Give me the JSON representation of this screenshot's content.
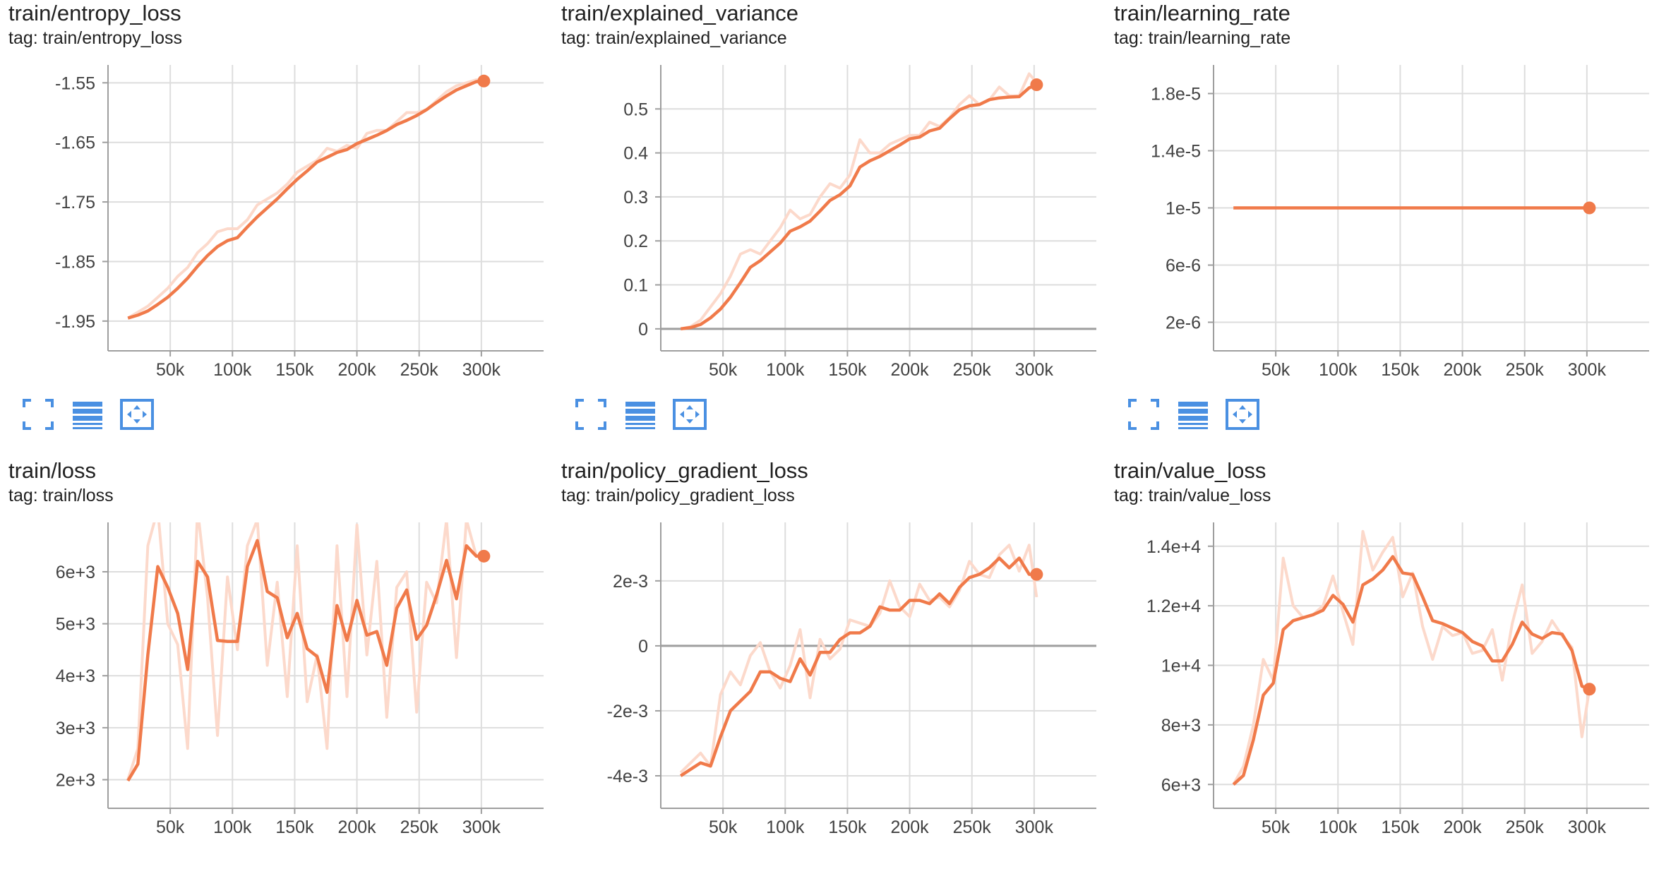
{
  "colors": {
    "accent": "#f07a4a",
    "accent_light": "#fcd9cb",
    "icon": "#4a90e2",
    "grid": "#dddddd",
    "axis": "#9e9e9e"
  },
  "icons": {
    "fullscreen": "fullscreen-icon",
    "log_scale": "log-scale-icon",
    "fit_domain": "fit-domain-icon"
  },
  "charts": [
    {
      "title": "train/entropy_loss",
      "tag": "tag: train/entropy_loss"
    },
    {
      "title": "train/explained_variance",
      "tag": "tag: train/explained_variance"
    },
    {
      "title": "train/learning_rate",
      "tag": "tag: train/learning_rate"
    },
    {
      "title": "train/loss",
      "tag": "tag: train/loss"
    },
    {
      "title": "train/policy_gradient_loss",
      "tag": "tag: train/policy_gradient_loss"
    },
    {
      "title": "train/value_loss",
      "tag": "tag: train/value_loss"
    }
  ],
  "chart_data": [
    {
      "type": "line",
      "title": "train/entropy_loss",
      "xlim": [
        0,
        350000
      ],
      "ylim": [
        -2.0,
        -1.52
      ],
      "xticks": [
        50000,
        100000,
        150000,
        200000,
        250000,
        300000
      ],
      "xtick_labels": [
        "50k",
        "100k",
        "150k",
        "200k",
        "250k",
        "300k"
      ],
      "yticks": [
        -1.95,
        -1.85,
        -1.75,
        -1.65,
        -1.55
      ],
      "ytick_labels": [
        "-1.95",
        "-1.85",
        "-1.75",
        "-1.65",
        "-1.55"
      ],
      "zero_line": false,
      "x": [
        16000,
        24000,
        32000,
        40000,
        48000,
        56000,
        64000,
        72000,
        80000,
        88000,
        96000,
        104000,
        112000,
        120000,
        128000,
        136000,
        144000,
        152000,
        160000,
        168000,
        176000,
        184000,
        192000,
        200000,
        208000,
        216000,
        224000,
        232000,
        240000,
        248000,
        256000,
        264000,
        272000,
        280000,
        288000,
        296000,
        302000
      ],
      "raw": [
        -1.945,
        -1.935,
        -1.925,
        -1.91,
        -1.895,
        -1.875,
        -1.86,
        -1.835,
        -1.82,
        -1.8,
        -1.795,
        -1.795,
        -1.78,
        -1.755,
        -1.745,
        -1.735,
        -1.72,
        -1.7,
        -1.69,
        -1.68,
        -1.66,
        -1.665,
        -1.655,
        -1.66,
        -1.635,
        -1.63,
        -1.63,
        -1.615,
        -1.6,
        -1.6,
        -1.595,
        -1.58,
        -1.565,
        -1.555,
        -1.55,
        -1.545,
        -1.545
      ],
      "smoothed": [
        -1.945,
        -1.94,
        -1.933,
        -1.922,
        -1.91,
        -1.895,
        -1.878,
        -1.858,
        -1.84,
        -1.825,
        -1.815,
        -1.81,
        -1.792,
        -1.775,
        -1.76,
        -1.745,
        -1.728,
        -1.712,
        -1.698,
        -1.683,
        -1.675,
        -1.667,
        -1.662,
        -1.652,
        -1.645,
        -1.638,
        -1.63,
        -1.62,
        -1.613,
        -1.605,
        -1.595,
        -1.583,
        -1.572,
        -1.562,
        -1.555,
        -1.548,
        -1.547
      ]
    },
    {
      "type": "line",
      "title": "train/explained_variance",
      "xlim": [
        0,
        350000
      ],
      "ylim": [
        -0.05,
        0.6
      ],
      "xticks": [
        50000,
        100000,
        150000,
        200000,
        250000,
        300000
      ],
      "xtick_labels": [
        "50k",
        "100k",
        "150k",
        "200k",
        "250k",
        "300k"
      ],
      "yticks": [
        0,
        0.1,
        0.2,
        0.3,
        0.4,
        0.5
      ],
      "ytick_labels": [
        "0",
        "0.1",
        "0.2",
        "0.3",
        "0.4",
        "0.5"
      ],
      "zero_line": true,
      "x": [
        16000,
        24000,
        32000,
        40000,
        48000,
        56000,
        64000,
        72000,
        80000,
        88000,
        96000,
        104000,
        112000,
        120000,
        128000,
        136000,
        144000,
        152000,
        160000,
        168000,
        176000,
        184000,
        192000,
        200000,
        208000,
        216000,
        224000,
        232000,
        240000,
        248000,
        256000,
        264000,
        272000,
        280000,
        288000,
        296000,
        302000
      ],
      "raw": [
        0.0,
        0.005,
        0.02,
        0.05,
        0.08,
        0.12,
        0.17,
        0.18,
        0.17,
        0.2,
        0.23,
        0.27,
        0.25,
        0.26,
        0.3,
        0.33,
        0.32,
        0.35,
        0.43,
        0.4,
        0.4,
        0.42,
        0.43,
        0.44,
        0.44,
        0.47,
        0.46,
        0.48,
        0.51,
        0.53,
        0.51,
        0.52,
        0.55,
        0.53,
        0.53,
        0.58,
        0.56
      ],
      "smoothed": [
        0.0,
        0.003,
        0.01,
        0.025,
        0.045,
        0.072,
        0.105,
        0.14,
        0.155,
        0.175,
        0.195,
        0.222,
        0.232,
        0.245,
        0.268,
        0.292,
        0.305,
        0.325,
        0.368,
        0.382,
        0.392,
        0.405,
        0.418,
        0.432,
        0.436,
        0.45,
        0.456,
        0.478,
        0.498,
        0.507,
        0.51,
        0.521,
        0.525,
        0.527,
        0.528,
        0.548,
        0.555
      ]
    },
    {
      "type": "line",
      "title": "train/learning_rate",
      "xlim": [
        0,
        350000
      ],
      "ylim": [
        0,
        2e-05
      ],
      "xticks": [
        50000,
        100000,
        150000,
        200000,
        250000,
        300000
      ],
      "xtick_labels": [
        "50k",
        "100k",
        "150k",
        "200k",
        "250k",
        "300k"
      ],
      "yticks": [
        2e-06,
        6e-06,
        1e-05,
        1.4e-05,
        1.8e-05
      ],
      "ytick_labels": [
        "2e-6",
        "6e-6",
        "1e-5",
        "1.4e-5",
        "1.8e-5"
      ],
      "zero_line": false,
      "x": [
        16000,
        302000
      ],
      "raw": [
        1e-05,
        1e-05
      ],
      "smoothed": [
        1e-05,
        1e-05
      ]
    },
    {
      "type": "line",
      "title": "train/loss",
      "xlim": [
        0,
        350000
      ],
      "ylim": [
        1450,
        6950
      ],
      "xticks": [
        50000,
        100000,
        150000,
        200000,
        250000,
        300000
      ],
      "xtick_labels": [
        "50k",
        "100k",
        "150k",
        "200k",
        "250k",
        "300k"
      ],
      "yticks": [
        2000,
        3000,
        4000,
        5000,
        6000
      ],
      "ytick_labels": [
        "2e+3",
        "3e+3",
        "4e+3",
        "5e+3",
        "6e+3"
      ],
      "zero_line": false,
      "x": [
        16000,
        24000,
        32000,
        40000,
        48000,
        56000,
        64000,
        72000,
        80000,
        88000,
        96000,
        104000,
        112000,
        120000,
        128000,
        136000,
        144000,
        152000,
        160000,
        168000,
        176000,
        184000,
        192000,
        200000,
        208000,
        216000,
        224000,
        232000,
        240000,
        248000,
        256000,
        264000,
        272000,
        280000,
        288000,
        296000,
        302000
      ],
      "raw": [
        2000,
        2600,
        6500,
        7200,
        5000,
        4600,
        2600,
        7200,
        5500,
        2850,
        5900,
        4500,
        6500,
        7000,
        4200,
        5800,
        3600,
        6500,
        3500,
        4400,
        2600,
        6500,
        3600,
        6900,
        4400,
        6200,
        3200,
        5700,
        6000,
        3300,
        5800,
        5400,
        7000,
        4350,
        7000,
        6300,
        6300
      ],
      "smoothed": [
        1980,
        2300,
        4400,
        6100,
        5700,
        5200,
        4120,
        6200,
        5900,
        4680,
        4660,
        4660,
        6100,
        6600,
        5620,
        5500,
        4730,
        5200,
        4520,
        4370,
        3680,
        5350,
        4680,
        5450,
        4780,
        4850,
        4200,
        5300,
        5650,
        4700,
        4970,
        5550,
        6220,
        5480,
        6500,
        6300,
        6300
      ]
    },
    {
      "type": "line",
      "title": "train/policy_gradient_loss",
      "xlim": [
        0,
        350000
      ],
      "ylim": [
        -0.005,
        0.0038
      ],
      "xticks": [
        50000,
        100000,
        150000,
        200000,
        250000,
        300000
      ],
      "xtick_labels": [
        "50k",
        "100k",
        "150k",
        "200k",
        "250k",
        "300k"
      ],
      "yticks": [
        -0.004,
        -0.002,
        0,
        0.002
      ],
      "ytick_labels": [
        "-4e-3",
        "-2e-3",
        "0",
        "2e-3"
      ],
      "zero_line": true,
      "x": [
        16000,
        24000,
        32000,
        40000,
        48000,
        56000,
        64000,
        72000,
        80000,
        88000,
        96000,
        104000,
        112000,
        120000,
        128000,
        136000,
        144000,
        152000,
        160000,
        168000,
        176000,
        184000,
        192000,
        200000,
        208000,
        216000,
        224000,
        232000,
        240000,
        248000,
        256000,
        264000,
        272000,
        280000,
        288000,
        296000,
        302000
      ],
      "raw": [
        -0.0039,
        -0.0036,
        -0.0033,
        -0.0037,
        -0.0015,
        -0.0008,
        -0.0012,
        -0.0003,
        0.0001,
        -0.0008,
        -0.0013,
        -0.0006,
        0.0005,
        -0.0016,
        0.0002,
        -0.0004,
        -0.0001,
        0.0008,
        0.0007,
        0.0006,
        0.001,
        0.002,
        0.0012,
        0.0009,
        0.0019,
        0.0014,
        0.0015,
        0.0012,
        0.0017,
        0.0026,
        0.0022,
        0.0021,
        0.0028,
        0.0031,
        0.0023,
        0.0031,
        0.0015
      ],
      "smoothed": [
        -0.004,
        -0.0038,
        -0.0036,
        -0.0037,
        -0.0028,
        -0.002,
        -0.0017,
        -0.0014,
        -0.0008,
        -0.0008,
        -0.001,
        -0.0011,
        -0.0004,
        -0.0009,
        -0.0002,
        -0.0002,
        0.0002,
        0.0004,
        0.0004,
        0.0006,
        0.0012,
        0.0011,
        0.0011,
        0.0014,
        0.0014,
        0.0013,
        0.0016,
        0.0013,
        0.0018,
        0.0021,
        0.0022,
        0.0024,
        0.0027,
        0.0024,
        0.0027,
        0.0022,
        0.0022
      ]
    },
    {
      "type": "line",
      "title": "train/value_loss",
      "xlim": [
        0,
        350000
      ],
      "ylim": [
        5200,
        14800
      ],
      "xticks": [
        50000,
        100000,
        150000,
        200000,
        250000,
        300000
      ],
      "xtick_labels": [
        "50k",
        "100k",
        "150k",
        "200k",
        "250k",
        "300k"
      ],
      "yticks": [
        6000,
        8000,
        10000,
        12000,
        14000
      ],
      "ytick_labels": [
        "6e+3",
        "8e+3",
        "1e+4",
        "1.2e+4",
        "1.4e+4"
      ],
      "zero_line": false,
      "x": [
        16000,
        24000,
        32000,
        40000,
        48000,
        56000,
        64000,
        72000,
        80000,
        88000,
        96000,
        104000,
        112000,
        120000,
        128000,
        136000,
        144000,
        152000,
        160000,
        168000,
        176000,
        184000,
        192000,
        200000,
        208000,
        216000,
        224000,
        232000,
        240000,
        248000,
        256000,
        264000,
        272000,
        280000,
        288000,
        296000,
        302000
      ],
      "raw": [
        6000,
        6600,
        8000,
        10200,
        9500,
        13600,
        12000,
        11600,
        11700,
        12000,
        13000,
        11800,
        10700,
        14500,
        13200,
        13800,
        14300,
        12300,
        13100,
        11300,
        10200,
        11300,
        11000,
        11100,
        10400,
        10500,
        11200,
        9500,
        11400,
        12700,
        10400,
        10800,
        11500,
        11000,
        10600,
        7600,
        9200
      ],
      "smoothed": [
        6000,
        6300,
        7500,
        9000,
        9400,
        11200,
        11500,
        11600,
        11700,
        11850,
        12350,
        12050,
        11450,
        12700,
        12900,
        13200,
        13650,
        13100,
        13050,
        12300,
        11500,
        11400,
        11250,
        11100,
        10800,
        10650,
        10150,
        10150,
        10700,
        11450,
        11050,
        10900,
        11100,
        11050,
        10500,
        9300,
        9200
      ]
    }
  ]
}
